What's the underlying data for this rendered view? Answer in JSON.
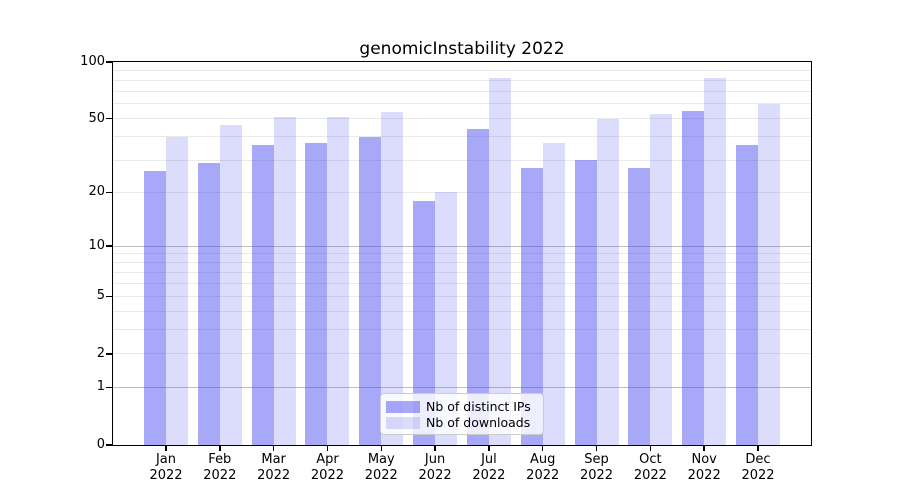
{
  "chart_data": {
    "type": "bar",
    "title": "genomicInstability 2022",
    "year_label": "2022",
    "categories": [
      "Jan",
      "Feb",
      "Mar",
      "Apr",
      "May",
      "Jun",
      "Jul",
      "Aug",
      "Sep",
      "Oct",
      "Nov",
      "Dec"
    ],
    "series": [
      {
        "name": "Nb of distinct IPs",
        "color": "#3e3eef",
        "opacity": 0.45,
        "values": [
          26,
          29,
          36,
          37,
          40,
          18,
          44,
          27,
          30,
          27,
          55,
          36
        ]
      },
      {
        "name": "Nb of downloads",
        "color": "#3e3eef",
        "opacity": 0.18,
        "values": [
          40,
          46,
          51,
          51,
          54,
          20,
          82,
          37,
          50,
          53,
          82,
          60
        ]
      }
    ],
    "yscale": "log1p",
    "ylim": [
      0,
      100
    ],
    "yticks": [
      {
        "value": 100,
        "label": "100"
      },
      {
        "value": 50,
        "label": "50"
      },
      {
        "value": 20,
        "label": "20"
      },
      {
        "value": 10,
        "label": "10"
      },
      {
        "value": 5,
        "label": "5"
      },
      {
        "value": 2,
        "label": "2"
      },
      {
        "value": 1,
        "label": "1"
      },
      {
        "value": 0,
        "label": "0"
      }
    ],
    "gridlines": {
      "minor": [
        2,
        3,
        4,
        5,
        6,
        7,
        8,
        9,
        20,
        30,
        40,
        50,
        60,
        70,
        80,
        90
      ],
      "major": [
        1,
        10
      ]
    },
    "legend_position": "lower center",
    "grid": true
  },
  "colors": {
    "background": "#ffffff",
    "bar_base": "#3e3eef",
    "grid_minor": "#e9e9e9",
    "grid_major": "#bfbfbf",
    "spine": "#000000",
    "legend_border": "#cccccc",
    "text": "#000000"
  }
}
